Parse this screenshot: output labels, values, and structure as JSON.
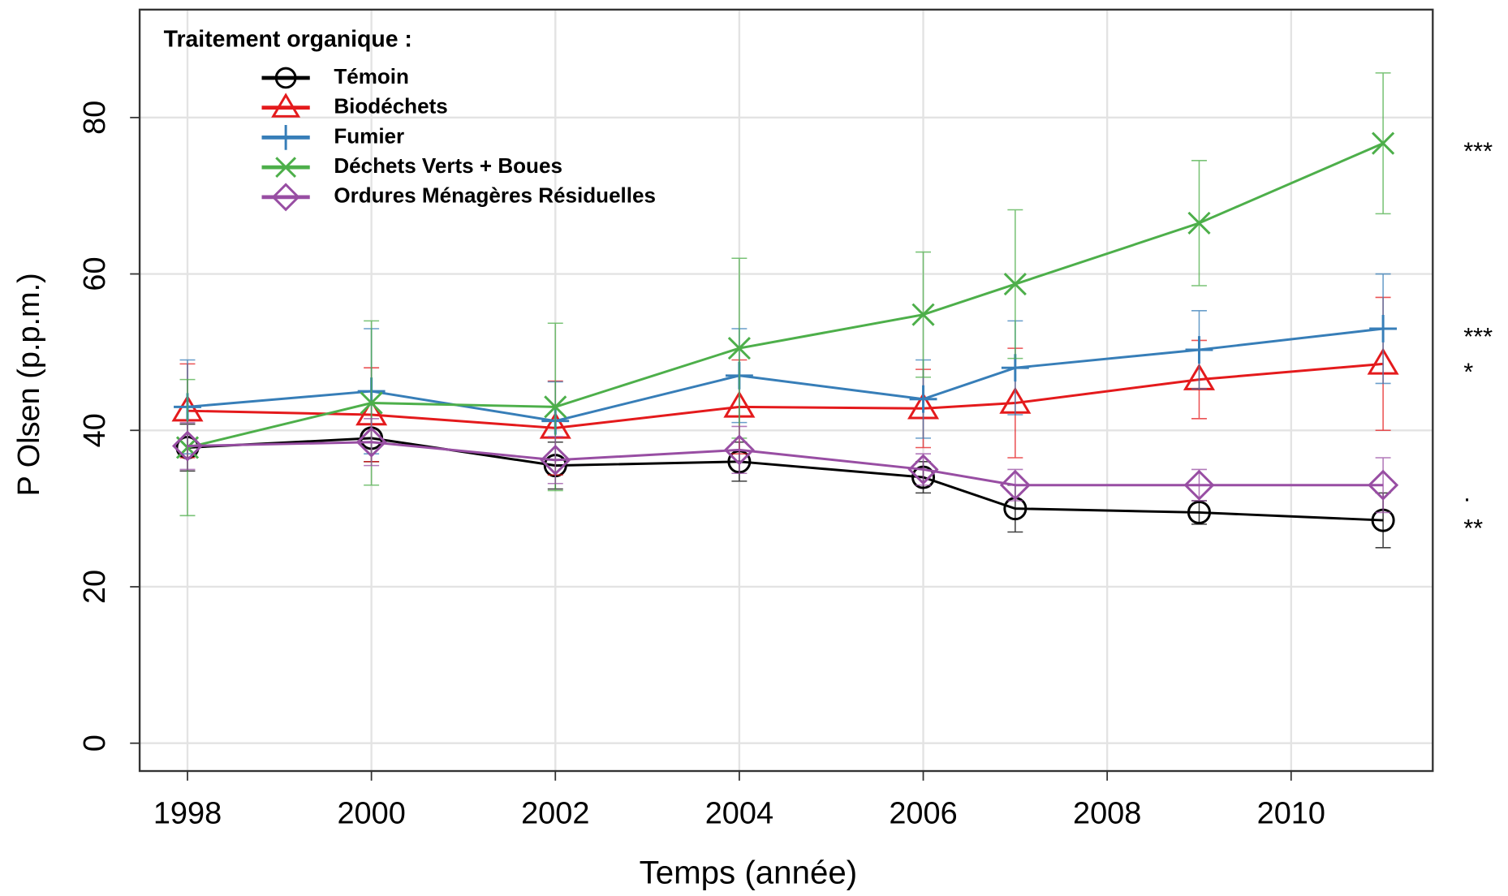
{
  "chart_data": {
    "type": "line",
    "x": [
      1998,
      2000,
      2002,
      2004,
      2006,
      2007,
      2009,
      2011
    ],
    "xlabel": "Temps (année)",
    "ylabel": "P Olsen (p.p.m.)",
    "xlim": [
      1997.48,
      2011.54
    ],
    "ylim": [
      -3.56,
      93.8
    ],
    "xticks": [
      1998,
      2000,
      2002,
      2004,
      2006,
      2008,
      2010
    ],
    "yticks": [
      0,
      20,
      40,
      60,
      80
    ],
    "grid": true,
    "legend_title": "Traitement organique :",
    "legend_position": "top-left",
    "series": [
      {
        "name": "Témoin",
        "color": "#000000",
        "marker": "circle",
        "significance": "**",
        "values": [
          37.8,
          39,
          35.5,
          36,
          34,
          30,
          29.5,
          28.5
        ],
        "errors": [
          3,
          3,
          3,
          2.5,
          2,
          3,
          1.5,
          3.5
        ]
      },
      {
        "name": "Biodéchets",
        "color": "#e41a1c",
        "marker": "triangle",
        "significance": "*",
        "values": [
          42.5,
          42,
          40.3,
          43,
          42.8,
          43.5,
          46.5,
          48.5
        ],
        "errors": [
          6,
          6,
          6,
          6,
          5,
          7,
          5,
          8.5
        ]
      },
      {
        "name": "Fumier",
        "color": "#377eb8",
        "marker": "plus",
        "significance": "***",
        "values": [
          43,
          45,
          41.2,
          47,
          44,
          48,
          50.3,
          53
        ],
        "errors": [
          6,
          8,
          5,
          6,
          5,
          6,
          5,
          7
        ]
      },
      {
        "name": "Déchets Verts + Boues",
        "color": "#4daf4a",
        "marker": "cross",
        "significance": "***",
        "values": [
          37.8,
          43.5,
          43,
          50.5,
          54.8,
          58.7,
          66.5,
          76.7
        ],
        "errors": [
          8.7,
          10.5,
          10.7,
          11.5,
          8,
          9.5,
          8,
          9
        ]
      },
      {
        "name": "Ordures Ménagères Résiduelles",
        "color": "#984ea3",
        "marker": "diamond",
        "significance": ".",
        "values": [
          38,
          38.5,
          36.2,
          37.5,
          35,
          33,
          33,
          33
        ],
        "errors": [
          3,
          3,
          3,
          3,
          2,
          2,
          2,
          3.5
        ]
      }
    ]
  }
}
